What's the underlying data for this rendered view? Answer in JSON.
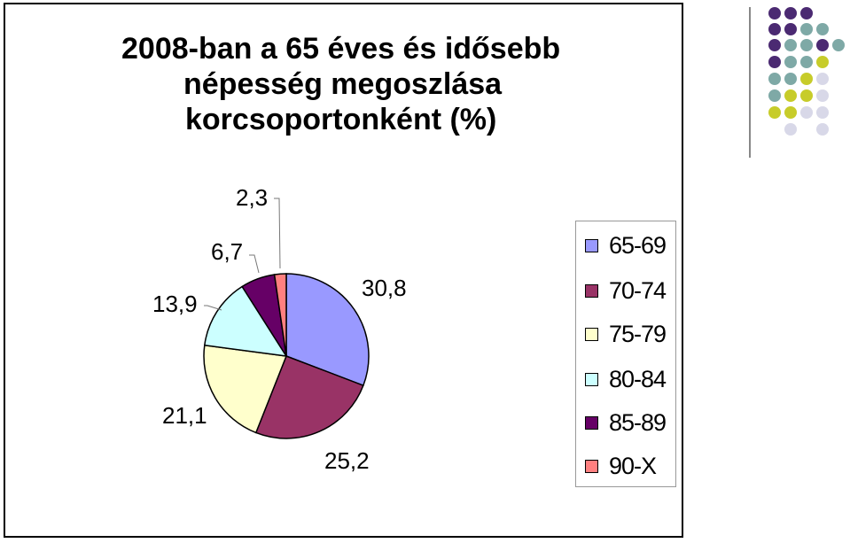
{
  "chart_data": {
    "type": "pie",
    "title_lines": [
      "2008-ban a 65 éves és idősebb",
      "népesség megoszlása",
      "korcsoportonként (%)"
    ],
    "slices": [
      {
        "label": "65-69",
        "value": 30.8,
        "value_label": "30,8",
        "color": "#9999ff"
      },
      {
        "label": "70-74",
        "value": 25.2,
        "value_label": "25,2",
        "color": "#993366"
      },
      {
        "label": "75-79",
        "value": 21.1,
        "value_label": "21,1",
        "color": "#ffffcc"
      },
      {
        "label": "80-84",
        "value": 13.9,
        "value_label": "13,9",
        "color": "#ccffff"
      },
      {
        "label": "85-89",
        "value": 6.7,
        "value_label": "6,7",
        "color": "#660066"
      },
      {
        "label": "90-X",
        "value": 2.3,
        "value_label": "2,3",
        "color": "#ff8080"
      }
    ],
    "legend_position": "right"
  },
  "decoration": {
    "dot_colors": [
      "#4b2a72",
      "#7ea9a6",
      "#c7cc2a",
      "#d8d8e8"
    ]
  }
}
